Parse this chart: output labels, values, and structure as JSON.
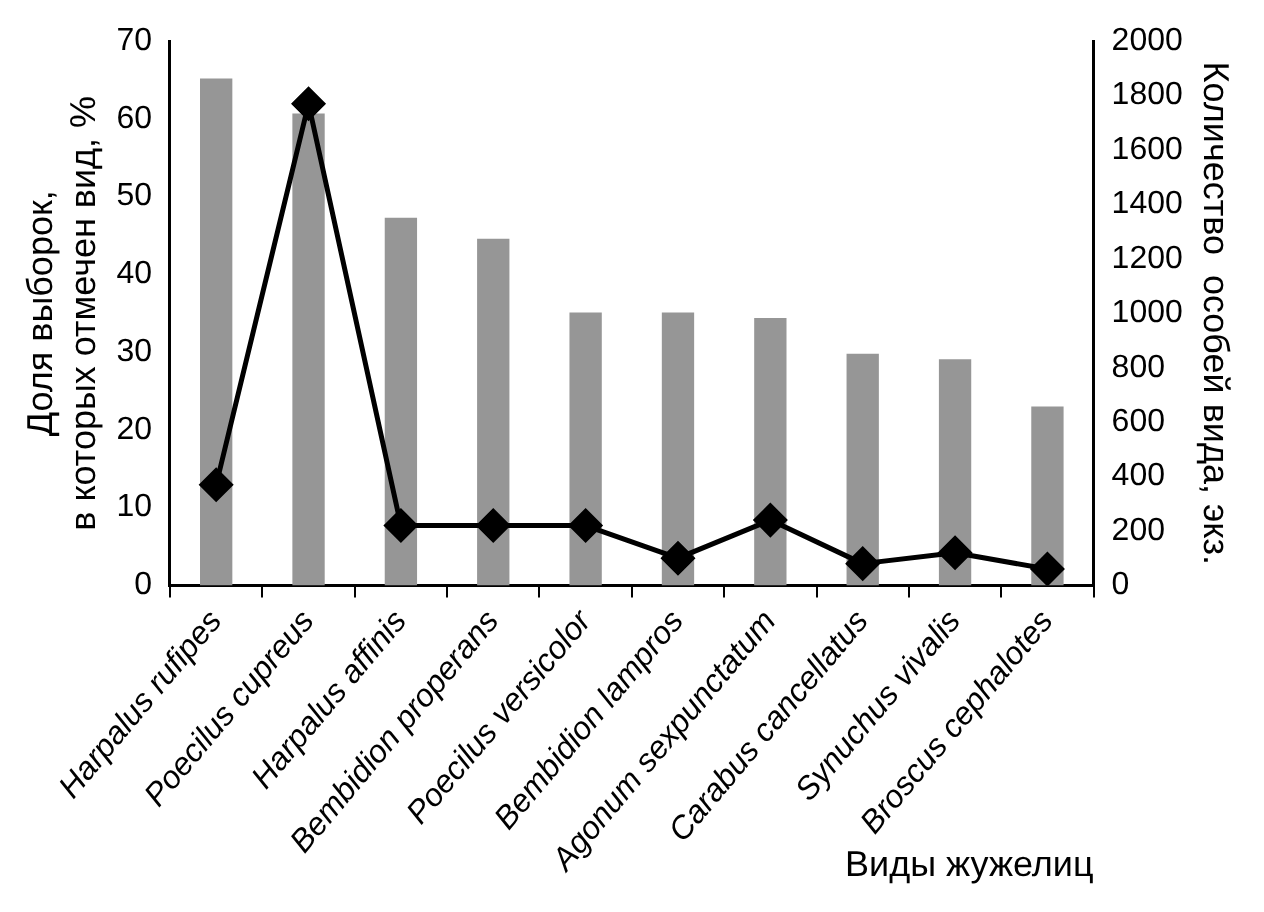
{
  "chart_data": {
    "type": "bar",
    "xlabel": "Виды жужелиц",
    "ylabel": "Доля выборок,\nв которых отмечен вид, %",
    "y2label": "Количество  особей вида, экз.",
    "categories": [
      "Harpalus rufipes",
      "Poecilus cupreus",
      "Harpalus affinis",
      "Bembidion properans",
      "Poecilus versicolor",
      "Bembidion lampros",
      "Agonum sexpunctatum",
      "Carabus cancellatus",
      "Synuchus vivalis",
      "Broscus cephalotes"
    ],
    "series": [
      {
        "color": "#969696",
        "values": [
          65.2,
          60.7,
          47.3,
          44.6,
          35.1,
          35.1,
          34.4,
          29.8,
          29.1,
          23.0
        ]
      },
      {
        "type": "line",
        "axis": "y2",
        "color": "#000000",
        "marker": "diamond",
        "values": [
          370,
          1770,
          220,
          220,
          220,
          100,
          240,
          80,
          120,
          60
        ]
      }
    ],
    "ylim": [
      0,
      70
    ],
    "yticks": [
      0,
      10,
      20,
      30,
      40,
      50,
      60,
      70
    ],
    "y2lim": [
      0,
      2000
    ],
    "y2ticks": [
      0,
      200,
      400,
      600,
      800,
      1000,
      1200,
      1400,
      1600,
      1800,
      2000
    ],
    "grid": false,
    "legend": false
  }
}
